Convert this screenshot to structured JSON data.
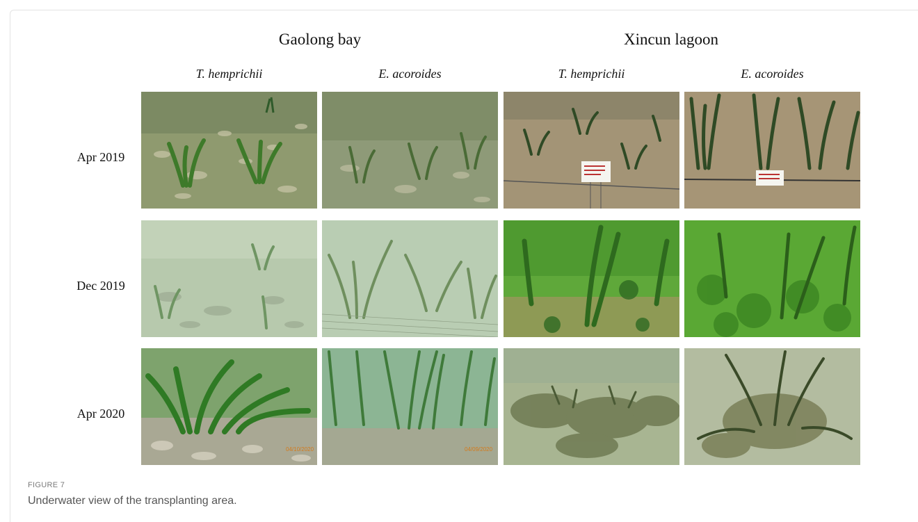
{
  "figure": {
    "label": "FIGURE 7",
    "caption": "Underwater view of the transplanting area."
  },
  "sites": [
    "Gaolong bay",
    "Xincun lagoon"
  ],
  "species": [
    "T. hemprichii",
    "E. acoroides",
    "T. hemprichii",
    "E. acoroides"
  ],
  "rows": [
    "Apr 2019",
    "Dec 2019",
    "Apr 2020"
  ],
  "photo_palette": {
    "gaolong_apr2019": "#8f9a6f",
    "gaolong_dec2019": "#b7c9ad",
    "gaolong_apr2020": "#7ea36d",
    "xincun_apr2019": "#a39476",
    "xincun_dec2019": "#5fa83a",
    "xincun_apr2020": "#a8b592",
    "seagrass_dark": "#2f5a2a",
    "seagrass_bright": "#3e8a2a"
  }
}
